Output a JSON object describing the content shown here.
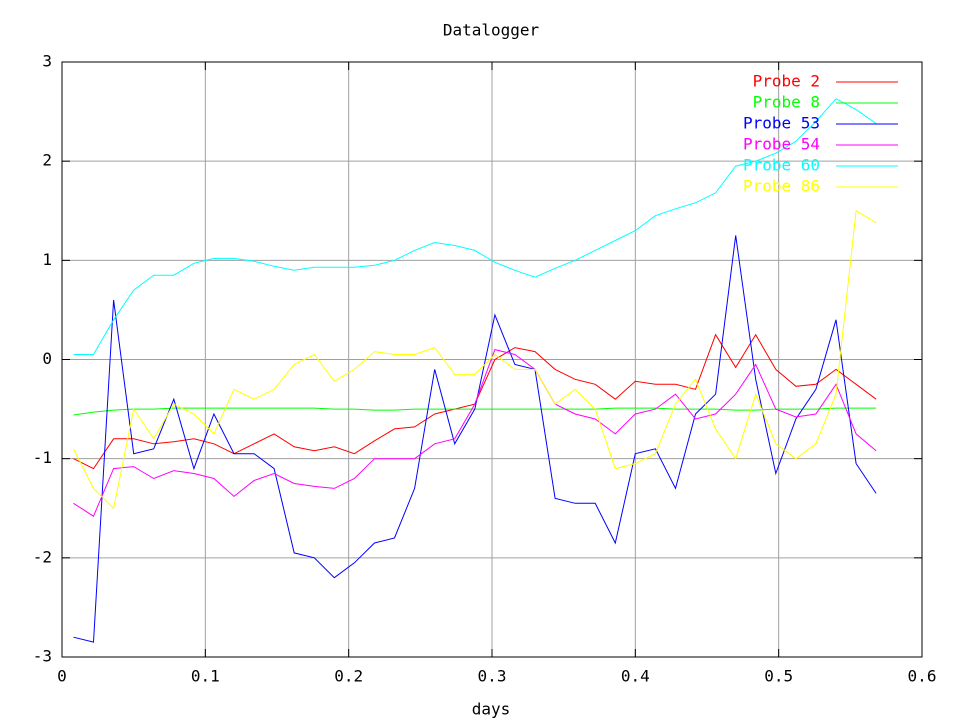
{
  "chart_data": {
    "type": "line",
    "title": "Datalogger",
    "xlabel": "days",
    "xlim": [
      0,
      0.6
    ],
    "xticks": [
      0,
      0.1,
      0.2,
      0.3,
      0.4,
      0.5,
      0.6
    ],
    "ylim": [
      -3,
      3
    ],
    "yticks": [
      -3,
      -2,
      -1,
      0,
      1,
      2,
      3
    ],
    "grid": true,
    "legend": "top-right",
    "x": [
      0.008,
      0.022,
      0.036,
      0.05,
      0.064,
      0.078,
      0.092,
      0.106,
      0.12,
      0.134,
      0.148,
      0.162,
      0.176,
      0.19,
      0.204,
      0.218,
      0.232,
      0.246,
      0.26,
      0.274,
      0.288,
      0.302,
      0.316,
      0.33,
      0.344,
      0.358,
      0.372,
      0.386,
      0.4,
      0.414,
      0.428,
      0.442,
      0.456,
      0.47,
      0.484,
      0.498,
      0.512,
      0.526,
      0.54,
      0.554,
      0.568
    ],
    "series": [
      {
        "name": "Probe 2",
        "color": "#ff0000",
        "values": [
          -1.0,
          -1.1,
          -0.8,
          -0.8,
          -0.85,
          -0.83,
          -0.8,
          -0.85,
          -0.95,
          -0.85,
          -0.75,
          -0.88,
          -0.92,
          -0.88,
          -0.95,
          -0.82,
          -0.7,
          -0.68,
          -0.55,
          -0.5,
          -0.45,
          0.0,
          0.12,
          0.08,
          -0.1,
          -0.2,
          -0.25,
          -0.4,
          -0.22,
          -0.25,
          -0.25,
          -0.3,
          0.25,
          -0.08,
          0.25,
          -0.1,
          -0.27,
          -0.25,
          -0.1,
          -0.25,
          -0.4
        ]
      },
      {
        "name": "Probe 8",
        "color": "#00ff00",
        "values": [
          -0.56,
          -0.53,
          -0.51,
          -0.5,
          -0.5,
          -0.49,
          -0.49,
          -0.49,
          -0.49,
          -0.49,
          -0.49,
          -0.49,
          -0.49,
          -0.5,
          -0.5,
          -0.51,
          -0.51,
          -0.5,
          -0.5,
          -0.5,
          -0.5,
          -0.5,
          -0.5,
          -0.5,
          -0.5,
          -0.5,
          -0.5,
          -0.49,
          -0.49,
          -0.49,
          -0.5,
          -0.5,
          -0.5,
          -0.51,
          -0.51,
          -0.5,
          -0.5,
          -0.5,
          -0.49,
          -0.49,
          -0.49
        ]
      },
      {
        "name": "Probe 53",
        "color": "#0000ff",
        "values": [
          -2.8,
          -2.85,
          0.6,
          -0.95,
          -0.9,
          -0.4,
          -1.1,
          -0.55,
          -0.95,
          -0.95,
          -1.1,
          -1.95,
          -2.0,
          -2.2,
          -2.05,
          -1.85,
          -1.8,
          -1.3,
          -0.1,
          -0.85,
          -0.5,
          0.45,
          -0.05,
          -0.1,
          -1.4,
          -1.45,
          -1.45,
          -1.85,
          -0.95,
          -0.9,
          -1.3,
          -0.55,
          -0.35,
          1.25,
          -0.2,
          -1.15,
          -0.6,
          -0.3,
          0.4,
          -1.05,
          -1.35
        ]
      },
      {
        "name": "Probe 54",
        "color": "#ff00ff",
        "values": [
          -1.45,
          -1.58,
          -1.1,
          -1.08,
          -1.2,
          -1.12,
          -1.15,
          -1.2,
          -1.38,
          -1.22,
          -1.15,
          -1.25,
          -1.28,
          -1.3,
          -1.2,
          -1.0,
          -1.0,
          -1.0,
          -0.85,
          -0.8,
          -0.45,
          0.1,
          0.05,
          -0.1,
          -0.45,
          -0.55,
          -0.6,
          -0.75,
          -0.55,
          -0.5,
          -0.35,
          -0.6,
          -0.55,
          -0.35,
          -0.05,
          -0.5,
          -0.58,
          -0.55,
          -0.25,
          -0.75,
          -0.92
        ]
      },
      {
        "name": "Probe 60",
        "color": "#00ffff",
        "values": [
          0.05,
          0.05,
          0.4,
          0.7,
          0.85,
          0.85,
          0.97,
          1.02,
          1.02,
          0.99,
          0.94,
          0.9,
          0.93,
          0.93,
          0.93,
          0.95,
          1.0,
          1.1,
          1.18,
          1.15,
          1.1,
          0.98,
          0.9,
          0.83,
          0.92,
          1.0,
          1.1,
          1.2,
          1.3,
          1.45,
          1.52,
          1.58,
          1.68,
          1.95,
          2.0,
          2.08,
          2.2,
          2.4,
          2.63,
          2.52,
          2.38
        ]
      },
      {
        "name": "Probe 86",
        "color": "#ffff00",
        "values": [
          -0.9,
          -1.3,
          -1.5,
          -0.5,
          -0.8,
          -0.45,
          -0.55,
          -0.75,
          -0.3,
          -0.4,
          -0.3,
          -0.05,
          0.05,
          -0.22,
          -0.1,
          0.08,
          0.05,
          0.05,
          0.12,
          -0.15,
          -0.15,
          0.05,
          -0.1,
          -0.1,
          -0.45,
          -0.3,
          -0.5,
          -1.1,
          -1.05,
          -0.95,
          -0.45,
          -0.2,
          -0.7,
          -1.0,
          -0.35,
          -0.85,
          -1.0,
          -0.85,
          -0.35,
          1.5,
          1.38
        ]
      }
    ]
  }
}
